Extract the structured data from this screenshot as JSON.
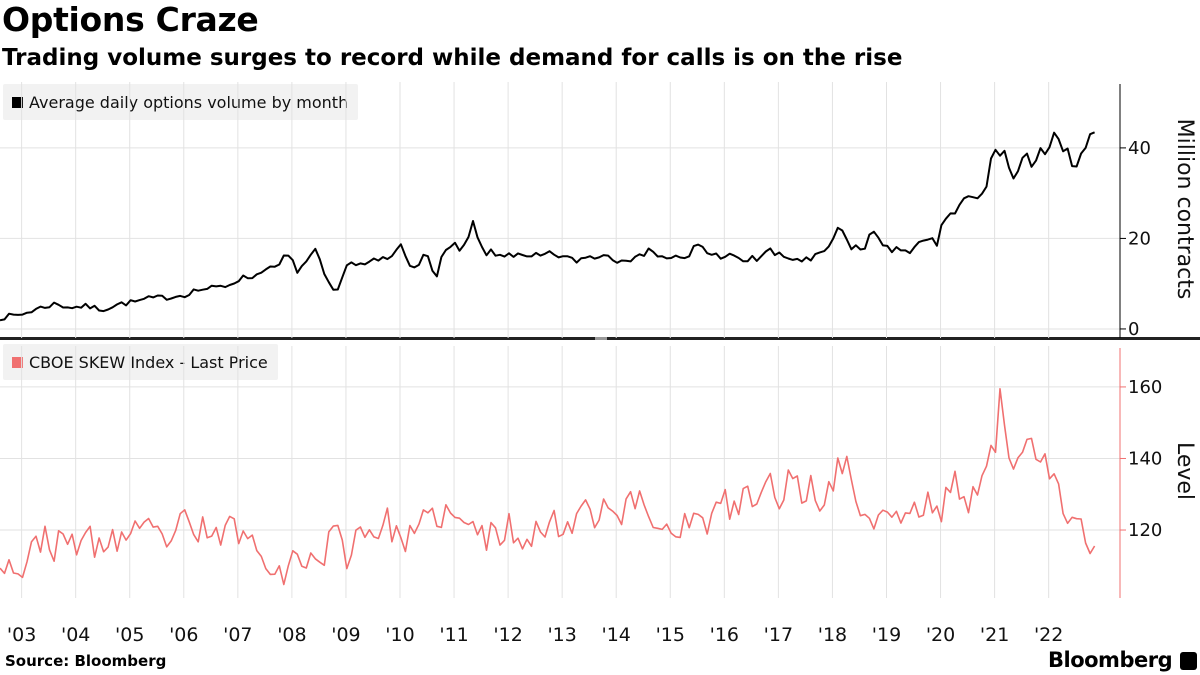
{
  "title": "Options Craze",
  "subtitle": "Trading volume surges to record while demand for calls is on the rise",
  "source": "Source: Bloomberg",
  "brand": "Bloomberg",
  "colors": {
    "volume": "#000000",
    "skew": "#f07070",
    "legend_bg": "#f2f2f2"
  },
  "chart_data": [
    {
      "type": "line",
      "legend": "Average daily options volume by month",
      "ylabel": "Million contracts",
      "yticks": [
        0,
        20,
        40
      ],
      "ylim": [
        -2,
        55
      ],
      "xlim": [
        2002.6,
        2022.95
      ],
      "series": [
        {
          "name": "Average daily options volume by month",
          "keypoints": [
            [
              2002.6,
              2.5
            ],
            [
              2003.0,
              3.2
            ],
            [
              2003.3,
              4.5
            ],
            [
              2003.6,
              5.5
            ],
            [
              2003.9,
              4.8
            ],
            [
              2004.2,
              5.0
            ],
            [
              2004.5,
              4.3
            ],
            [
              2004.8,
              5.5
            ],
            [
              2005.1,
              6.0
            ],
            [
              2005.4,
              6.8
            ],
            [
              2005.7,
              7.0
            ],
            [
              2006.0,
              7.5
            ],
            [
              2006.2,
              8.5
            ],
            [
              2006.5,
              9.0
            ],
            [
              2006.8,
              9.5
            ],
            [
              2007.0,
              11.0
            ],
            [
              2007.2,
              11.5
            ],
            [
              2007.4,
              12.0
            ],
            [
              2007.5,
              14.0
            ],
            [
              2007.7,
              13.0
            ],
            [
              2007.9,
              16.5
            ],
            [
              2008.1,
              13.0
            ],
            [
              2008.3,
              15.0
            ],
            [
              2008.45,
              17.0
            ],
            [
              2008.6,
              12.0
            ],
            [
              2008.75,
              8.0
            ],
            [
              2008.9,
              9.0
            ],
            [
              2009.0,
              15.0
            ],
            [
              2009.3,
              14.0
            ],
            [
              2009.6,
              15.0
            ],
            [
              2009.9,
              16.0
            ],
            [
              2010.0,
              19.0
            ],
            [
              2010.2,
              14.0
            ],
            [
              2010.5,
              16.0
            ],
            [
              2010.65,
              11.0
            ],
            [
              2010.8,
              17.0
            ],
            [
              2011.0,
              18.0
            ],
            [
              2011.2,
              17.5
            ],
            [
              2011.35,
              23.0
            ],
            [
              2011.5,
              17.5
            ],
            [
              2011.8,
              16.0
            ],
            [
              2012.0,
              17.0
            ],
            [
              2012.3,
              15.5
            ],
            [
              2012.6,
              16.0
            ],
            [
              2012.9,
              16.5
            ],
            [
              2013.2,
              15.0
            ],
            [
              2013.5,
              16.0
            ],
            [
              2013.8,
              16.5
            ],
            [
              2014.0,
              15.5
            ],
            [
              2014.2,
              16.0
            ],
            [
              2014.4,
              15.0
            ],
            [
              2014.6,
              18.5
            ],
            [
              2014.8,
              15.5
            ],
            [
              2015.0,
              16.0
            ],
            [
              2015.3,
              15.0
            ],
            [
              2015.5,
              19.0
            ],
            [
              2015.8,
              16.0
            ],
            [
              2016.0,
              16.5
            ],
            [
              2016.3,
              15.0
            ],
            [
              2016.6,
              15.5
            ],
            [
              2016.8,
              17.5
            ],
            [
              2017.0,
              16.0
            ],
            [
              2017.3,
              15.5
            ],
            [
              2017.6,
              15.0
            ],
            [
              2017.8,
              16.5
            ],
            [
              2018.05,
              20.0
            ],
            [
              2018.15,
              22.5
            ],
            [
              2018.3,
              18.5
            ],
            [
              2018.6,
              17.5
            ],
            [
              2018.75,
              22.0
            ],
            [
              2018.9,
              20.0
            ],
            [
              2019.1,
              16.5
            ],
            [
              2019.3,
              18.0
            ],
            [
              2019.5,
              17.5
            ],
            [
              2019.7,
              19.0
            ],
            [
              2019.95,
              19.0
            ],
            [
              2020.1,
              25.0
            ],
            [
              2020.3,
              26.0
            ],
            [
              2020.5,
              29.0
            ],
            [
              2020.65,
              28.0
            ],
            [
              2020.8,
              30.0
            ],
            [
              2020.95,
              37.0
            ],
            [
              2021.05,
              41.0
            ],
            [
              2021.2,
              38.0
            ],
            [
              2021.35,
              33.0
            ],
            [
              2021.5,
              36.0
            ],
            [
              2021.7,
              37.5
            ],
            [
              2021.85,
              41.0
            ],
            [
              2021.95,
              38.0
            ],
            [
              2022.05,
              42.0
            ],
            [
              2022.2,
              40.0
            ],
            [
              2022.35,
              38.0
            ],
            [
              2022.55,
              35.5
            ],
            [
              2022.75,
              41.0
            ],
            [
              2022.9,
              46.0
            ]
          ]
        }
      ]
    },
    {
      "type": "line",
      "legend": "CBOE SKEW Index - Last Price",
      "ylabel": "Level",
      "yticks": [
        120,
        140,
        160
      ],
      "ylim": [
        101,
        172
      ],
      "xlim": [
        2002.6,
        2022.95
      ],
      "xticks": [
        "'03",
        "'04",
        "'05",
        "'06",
        "'07",
        "'08",
        "'09",
        "'10",
        "'11",
        "'12",
        "'13",
        "'14",
        "'15",
        "'16",
        "'17",
        "'18",
        "'19",
        "'20",
        "'21",
        "'22"
      ],
      "series": [
        {
          "name": "CBOE SKEW Index - Last Price",
          "keypoints": [
            [
              2002.6,
              113.0
            ],
            [
              2002.8,
              110.0
            ],
            [
              2003.0,
              109.0
            ],
            [
              2003.2,
              113.0
            ],
            [
              2003.4,
              120.0
            ],
            [
              2003.6,
              115.0
            ],
            [
              2003.8,
              116.0
            ],
            [
              2004.0,
              117.0
            ],
            [
              2004.2,
              118.0
            ],
            [
              2004.4,
              114.0
            ],
            [
              2004.6,
              118.0
            ],
            [
              2004.8,
              117.0
            ],
            [
              2005.0,
              119.0
            ],
            [
              2005.2,
              118.0
            ],
            [
              2005.4,
              120.0
            ],
            [
              2005.6,
              117.0
            ],
            [
              2005.8,
              119.0
            ],
            [
              2006.0,
              122.0
            ],
            [
              2006.2,
              117.0
            ],
            [
              2006.4,
              121.0
            ],
            [
              2006.6,
              118.0
            ],
            [
              2006.8,
              120.0
            ],
            [
              2007.0,
              121.0
            ],
            [
              2007.2,
              117.0
            ],
            [
              2007.4,
              115.0
            ],
            [
              2007.6,
              112.0
            ],
            [
              2007.8,
              108.0
            ],
            [
              2008.0,
              110.0
            ],
            [
              2008.2,
              113.0
            ],
            [
              2008.4,
              111.0
            ],
            [
              2008.6,
              114.0
            ],
            [
              2008.8,
              120.0
            ],
            [
              2009.0,
              113.0
            ],
            [
              2009.2,
              119.0
            ],
            [
              2009.4,
              121.0
            ],
            [
              2009.6,
              120.0
            ],
            [
              2009.8,
              122.0
            ],
            [
              2010.0,
              118.0
            ],
            [
              2010.2,
              117.0
            ],
            [
              2010.4,
              121.0
            ],
            [
              2010.6,
              123.0
            ],
            [
              2010.8,
              125.0
            ],
            [
              2011.0,
              123.0
            ],
            [
              2011.2,
              120.0
            ],
            [
              2011.4,
              122.0
            ],
            [
              2011.6,
              117.0
            ],
            [
              2011.8,
              119.0
            ],
            [
              2012.0,
              121.0
            ],
            [
              2012.2,
              118.0
            ],
            [
              2012.4,
              120.0
            ],
            [
              2012.6,
              119.0
            ],
            [
              2012.8,
              122.0
            ],
            [
              2013.0,
              121.0
            ],
            [
              2013.2,
              123.0
            ],
            [
              2013.4,
              128.0
            ],
            [
              2013.6,
              125.0
            ],
            [
              2013.8,
              128.0
            ],
            [
              2014.0,
              124.0
            ],
            [
              2014.2,
              126.0
            ],
            [
              2014.4,
              129.0
            ],
            [
              2014.6,
              125.0
            ],
            [
              2014.8,
              120.0
            ],
            [
              2015.0,
              122.0
            ],
            [
              2015.2,
              121.0
            ],
            [
              2015.4,
              123.0
            ],
            [
              2015.6,
              121.0
            ],
            [
              2015.8,
              124.0
            ],
            [
              2016.0,
              127.0
            ],
            [
              2016.2,
              126.0
            ],
            [
              2016.4,
              130.0
            ],
            [
              2016.6,
              127.0
            ],
            [
              2016.8,
              133.0
            ],
            [
              2017.0,
              130.0
            ],
            [
              2017.2,
              134.0
            ],
            [
              2017.4,
              130.0
            ],
            [
              2017.6,
              132.0
            ],
            [
              2017.8,
              128.0
            ],
            [
              2018.0,
              135.0
            ],
            [
              2018.2,
              138.0
            ],
            [
              2018.4,
              134.0
            ],
            [
              2018.6,
              121.0
            ],
            [
              2018.8,
              124.0
            ],
            [
              2019.0,
              127.0
            ],
            [
              2019.2,
              122.0
            ],
            [
              2019.4,
              126.0
            ],
            [
              2019.6,
              124.0
            ],
            [
              2019.8,
              128.0
            ],
            [
              2020.0,
              125.0
            ],
            [
              2020.2,
              133.0
            ],
            [
              2020.4,
              131.0
            ],
            [
              2020.6,
              128.0
            ],
            [
              2020.8,
              135.0
            ],
            [
              2021.0,
              142.0
            ],
            [
              2021.1,
              156.0
            ],
            [
              2021.2,
              149.0
            ],
            [
              2021.35,
              138.0
            ],
            [
              2021.5,
              145.0
            ],
            [
              2021.65,
              152.0
            ],
            [
              2021.8,
              136.0
            ],
            [
              2022.0,
              138.0
            ],
            [
              2022.2,
              128.0
            ],
            [
              2022.4,
              120.0
            ],
            [
              2022.6,
              121.0
            ],
            [
              2022.75,
              117.0
            ],
            [
              2022.85,
              113.0
            ],
            [
              2022.92,
              115.0
            ]
          ]
        }
      ]
    }
  ]
}
